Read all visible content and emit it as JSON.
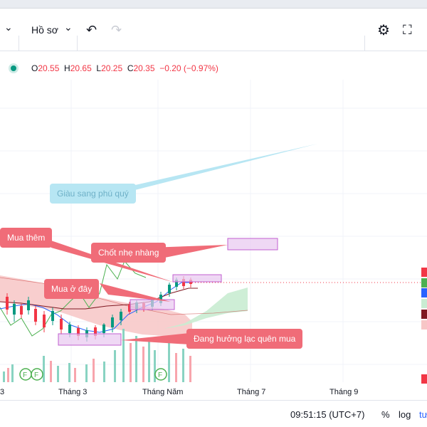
{
  "toolbar": {
    "left_chevron": "⌄",
    "profile_label": "Hồ sơ",
    "profile_chevron": "⌄",
    "undo_icon": "↶",
    "redo_icon": "↷",
    "settings_icon": "⚙",
    "fullscreen_icon": "⛶"
  },
  "ohlc": {
    "o_label": "O",
    "o_value": "20.55",
    "h_label": "H",
    "h_value": "20.65",
    "l_label": "L",
    "l_value": "20.25",
    "c_label": "C",
    "c_value": "20.35",
    "change": "−0.20 (−0.97%)"
  },
  "annotations": {
    "giau_sang": "Giàu sang phú quý",
    "mua_them": "Mua thêm",
    "chot_nhe": "Chốt nhẹ nhàng",
    "mua_o_day": "Mua ở đây",
    "dang_huong": "Đang hưởng lạc quên mua"
  },
  "x_axis": {
    "t0": "3",
    "t1": "Tháng 3",
    "t2": "Tháng Năm",
    "t3": "Tháng 7",
    "t4": "Tháng 9"
  },
  "event_markers": [
    "F",
    "F",
    "F"
  ],
  "footer": {
    "time": "09:51:15 (UTC+7)",
    "percent": "%",
    "log": "log",
    "auto": "tư"
  },
  "colors": {
    "up": "#089981",
    "down": "#f23645",
    "cloud_red": "#f7c6c6",
    "cloud_green": "#c9ecd2",
    "annotation_bg": "#f06c78",
    "annotation_cyan": "#b7e6f3",
    "box_fill": "#e8c7ef",
    "box_stroke": "#c05fd0"
  },
  "chart_data": {
    "type": "candlestick",
    "series": [
      {
        "name": "price",
        "values": [
          20.3,
          20.35
        ]
      }
    ]
  }
}
